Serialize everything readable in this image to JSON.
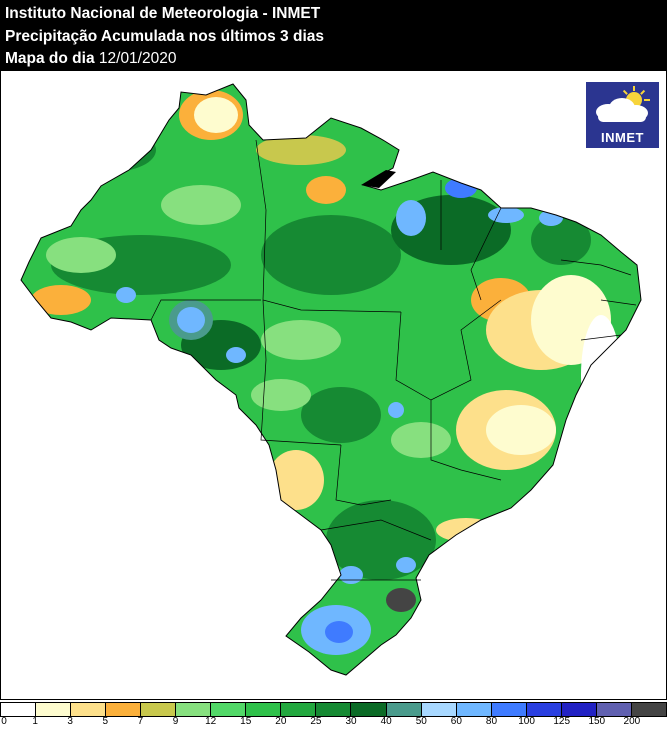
{
  "header": {
    "line1": "Instituto Nacional de Meteorologia - INMET",
    "line2": "Precipitação Acumulada nos últimos 3 dias",
    "line3_label": "Mapa do dia",
    "line3_date": "12/01/2020"
  },
  "logo": {
    "text": "INMET"
  },
  "legend": {
    "unit": "",
    "ticks": [
      "0",
      "1",
      "3",
      "5",
      "7",
      "9",
      "12",
      "15",
      "20",
      "25",
      "30",
      "40",
      "50",
      "60",
      "80",
      "100",
      "125",
      "150",
      "200"
    ],
    "colors": [
      "#ffffff",
      "#fefccf",
      "#fde08b",
      "#fbb03b",
      "#c8c84d",
      "#87e07f",
      "#52d868",
      "#2fc14a",
      "#23a83f",
      "#168a33",
      "#0b6b26",
      "#4a9b8c",
      "#a8d8ff",
      "#6fb7ff",
      "#3f7bff",
      "#2a3fe0",
      "#2222c4",
      "#6060b0",
      "#444444"
    ]
  },
  "map": {
    "region": "Brasil",
    "background_color": "#ffffff",
    "border_color": "#000000"
  }
}
